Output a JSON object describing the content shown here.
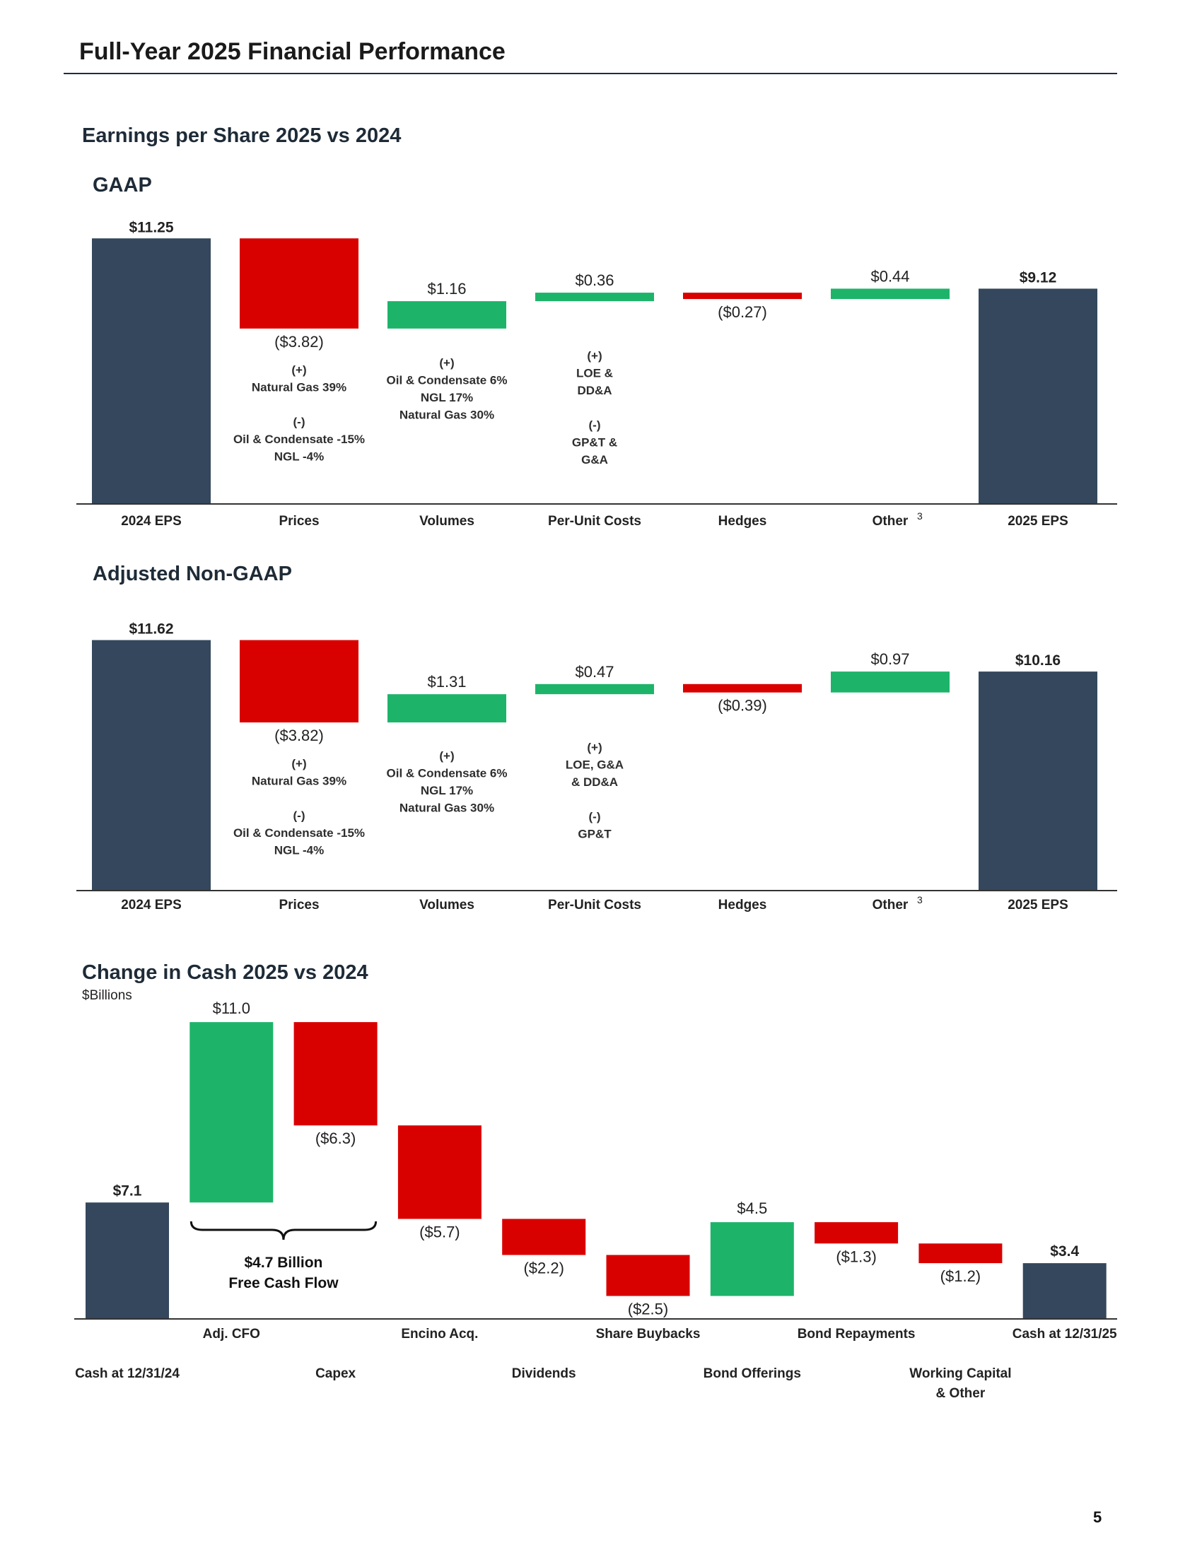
{
  "page": {
    "title": "Full-Year 2025 Financial Performance",
    "eps_section_title": "Earnings per Share 2025 vs 2024",
    "cash_section_title": "Change in Cash 2025 vs 2024",
    "cash_units": "$Billions",
    "page_number": "5"
  },
  "chart_data": [
    {
      "id": "gaap",
      "type": "waterfall",
      "title": "GAAP",
      "categories": [
        "2024 EPS",
        "Prices",
        "Volumes",
        "Per-Unit Costs",
        "Hedges",
        "Other",
        "2025 EPS"
      ],
      "footnote_on": "Other",
      "footnote": "3",
      "values": [
        11.25,
        -3.82,
        1.16,
        0.36,
        -0.27,
        0.44,
        9.12
      ],
      "kinds": [
        "total",
        "delta",
        "delta",
        "delta",
        "delta",
        "delta",
        "total"
      ],
      "value_labels": [
        "$11.25",
        "($3.82)",
        "$1.16",
        "$0.36",
        "($0.27)",
        "$0.44",
        "$9.12"
      ],
      "annotations": [
        null,
        [
          "(+)",
          "Natural Gas 39%",
          "",
          "(-)",
          "Oil & Condensate -15%",
          "NGL -4%"
        ],
        [
          "(+)",
          "Oil & Condensate 6%",
          "NGL 17%",
          "Natural Gas 30%"
        ],
        [
          "(+)",
          "LOE &",
          "DD&A",
          "",
          "(-)",
          "GP&T &",
          "G&A"
        ],
        null,
        null,
        null
      ],
      "colors": {
        "total": "#34475c",
        "increase": "#1db46a",
        "decrease": "#d90000"
      }
    },
    {
      "id": "adjusted",
      "type": "waterfall",
      "title": "Adjusted Non-GAAP",
      "categories": [
        "2024 EPS",
        "Prices",
        "Volumes",
        "Per-Unit Costs",
        "Hedges",
        "Other",
        "2025 EPS"
      ],
      "footnote_on": "Other",
      "footnote": "3",
      "values": [
        11.62,
        -3.82,
        1.31,
        0.47,
        -0.39,
        0.97,
        10.16
      ],
      "kinds": [
        "total",
        "delta",
        "delta",
        "delta",
        "delta",
        "delta",
        "total"
      ],
      "value_labels": [
        "$11.62",
        "($3.82)",
        "$1.31",
        "$0.47",
        "($0.39)",
        "$0.97",
        "$10.16"
      ],
      "annotations": [
        null,
        [
          "(+)",
          "Natural Gas 39%",
          "",
          "(-)",
          "Oil & Condensate -15%",
          "NGL -4%"
        ],
        [
          "(+)",
          "Oil & Condensate 6%",
          "NGL 17%",
          "Natural Gas 30%"
        ],
        [
          "(+)",
          "LOE, G&A",
          "& DD&A",
          "",
          "(-)",
          "GP&T"
        ],
        null,
        null,
        null
      ],
      "colors": {
        "total": "#34475c",
        "increase": "#1db46a",
        "decrease": "#d90000"
      }
    },
    {
      "id": "cash",
      "type": "waterfall",
      "title": "Change in Cash 2025 vs 2024",
      "ylabel": "$Billions",
      "categories": [
        "Cash at 12/31/24",
        "Adj. CFO",
        "Capex",
        "Encino Acq.",
        "Dividends",
        "Share Buybacks",
        "Bond Offerings",
        "Bond Repayments",
        "Working Capital & Other",
        "Cash at 12/31/25"
      ],
      "category_rows": [
        1,
        0,
        1,
        0,
        1,
        0,
        1,
        0,
        1,
        0
      ],
      "values": [
        7.1,
        11.0,
        -6.3,
        -5.7,
        -2.2,
        -2.5,
        4.5,
        -1.3,
        -1.2,
        3.4
      ],
      "kinds": [
        "total",
        "delta",
        "delta",
        "delta",
        "delta",
        "delta",
        "delta",
        "delta",
        "delta",
        "total"
      ],
      "value_labels": [
        "$7.1",
        "$11.0",
        "($6.3)",
        "($5.7)",
        "($2.2)",
        "($2.5)",
        "$4.5",
        "($1.3)",
        "($1.2)",
        "$3.4"
      ],
      "bracket": {
        "from": "Adj. CFO",
        "to": "Capex",
        "label_line1": "$4.7 Billion",
        "label_line2": "Free Cash Flow"
      },
      "colors": {
        "total": "#34475c",
        "increase": "#1db46a",
        "decrease": "#d90000"
      }
    }
  ]
}
